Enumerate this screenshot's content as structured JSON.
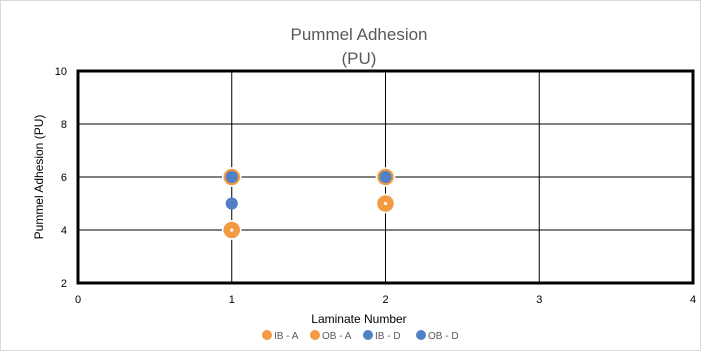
{
  "chart_data": {
    "type": "scatter",
    "title": "Pummel Adhesion",
    "subtitle": "(PU)",
    "xlabel": "Laminate Number",
    "ylabel": "Pummel Adhesion (PU)",
    "xlim": [
      0,
      4
    ],
    "ylim": [
      2,
      10
    ],
    "x_ticks": [
      "0",
      "1",
      "2",
      "3",
      "4"
    ],
    "y_ticks": [
      "2",
      "4",
      "6",
      "8",
      "10"
    ],
    "grid": true,
    "legend_position": "bottom",
    "series": [
      {
        "name": "IB - A",
        "color": "#f39a43",
        "marker": "circle-large",
        "points": [
          [
            1,
            6
          ],
          [
            1,
            4
          ],
          [
            2,
            6
          ],
          [
            2,
            5
          ]
        ]
      },
      {
        "name": "OB - A",
        "color": "#f39a43",
        "marker": "circle-large",
        "points": [
          [
            1,
            6
          ],
          [
            1,
            4
          ],
          [
            2,
            6
          ],
          [
            2,
            5
          ]
        ]
      },
      {
        "name": "IB - D",
        "color": "#4f81c4",
        "marker": "circle",
        "points": [
          [
            1,
            6
          ],
          [
            1,
            5
          ],
          [
            2,
            6
          ]
        ]
      },
      {
        "name": "OB - D",
        "color": "#4f81c4",
        "marker": "circle",
        "points": [
          [
            1,
            6
          ],
          [
            1,
            5
          ],
          [
            2,
            6
          ]
        ]
      }
    ]
  }
}
